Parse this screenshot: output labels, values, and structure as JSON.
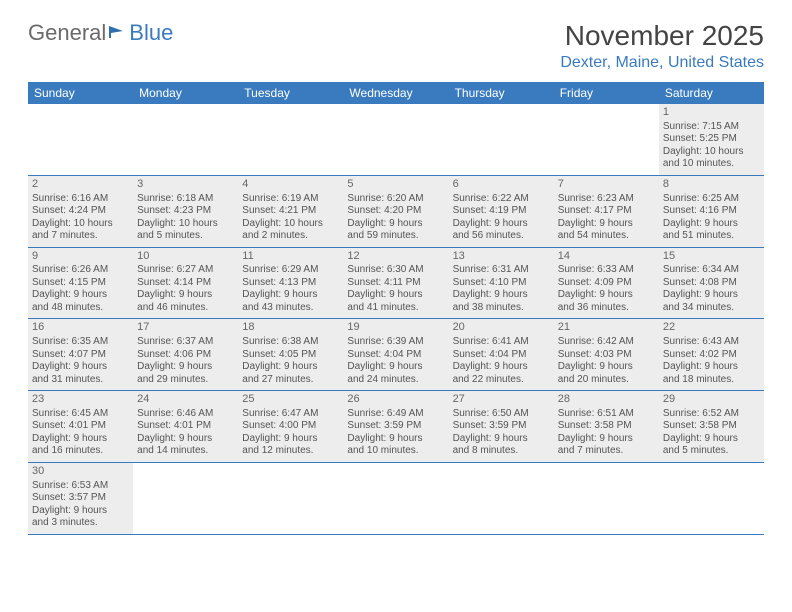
{
  "logo": {
    "part1": "General",
    "part2": "Blue",
    "flag_color": "#2f6fb0"
  },
  "title": {
    "month": "November 2025",
    "location": "Dexter, Maine, United States"
  },
  "colors": {
    "header_bg": "#3a7bbf",
    "header_text": "#ffffff",
    "row_bg": "#ededed",
    "border": "#3a7bbf",
    "location_color": "#3a7bbf",
    "text": "#555555"
  },
  "weekdays": [
    "Sunday",
    "Monday",
    "Tuesday",
    "Wednesday",
    "Thursday",
    "Friday",
    "Saturday"
  ],
  "weeks": [
    [
      null,
      null,
      null,
      null,
      null,
      null,
      {
        "d": "1",
        "sr": "Sunrise: 7:15 AM",
        "ss": "Sunset: 5:25 PM",
        "dl1": "Daylight: 10 hours",
        "dl2": "and 10 minutes."
      }
    ],
    [
      {
        "d": "2",
        "sr": "Sunrise: 6:16 AM",
        "ss": "Sunset: 4:24 PM",
        "dl1": "Daylight: 10 hours",
        "dl2": "and 7 minutes."
      },
      {
        "d": "3",
        "sr": "Sunrise: 6:18 AM",
        "ss": "Sunset: 4:23 PM",
        "dl1": "Daylight: 10 hours",
        "dl2": "and 5 minutes."
      },
      {
        "d": "4",
        "sr": "Sunrise: 6:19 AM",
        "ss": "Sunset: 4:21 PM",
        "dl1": "Daylight: 10 hours",
        "dl2": "and 2 minutes."
      },
      {
        "d": "5",
        "sr": "Sunrise: 6:20 AM",
        "ss": "Sunset: 4:20 PM",
        "dl1": "Daylight: 9 hours",
        "dl2": "and 59 minutes."
      },
      {
        "d": "6",
        "sr": "Sunrise: 6:22 AM",
        "ss": "Sunset: 4:19 PM",
        "dl1": "Daylight: 9 hours",
        "dl2": "and 56 minutes."
      },
      {
        "d": "7",
        "sr": "Sunrise: 6:23 AM",
        "ss": "Sunset: 4:17 PM",
        "dl1": "Daylight: 9 hours",
        "dl2": "and 54 minutes."
      },
      {
        "d": "8",
        "sr": "Sunrise: 6:25 AM",
        "ss": "Sunset: 4:16 PM",
        "dl1": "Daylight: 9 hours",
        "dl2": "and 51 minutes."
      }
    ],
    [
      {
        "d": "9",
        "sr": "Sunrise: 6:26 AM",
        "ss": "Sunset: 4:15 PM",
        "dl1": "Daylight: 9 hours",
        "dl2": "and 48 minutes."
      },
      {
        "d": "10",
        "sr": "Sunrise: 6:27 AM",
        "ss": "Sunset: 4:14 PM",
        "dl1": "Daylight: 9 hours",
        "dl2": "and 46 minutes."
      },
      {
        "d": "11",
        "sr": "Sunrise: 6:29 AM",
        "ss": "Sunset: 4:13 PM",
        "dl1": "Daylight: 9 hours",
        "dl2": "and 43 minutes."
      },
      {
        "d": "12",
        "sr": "Sunrise: 6:30 AM",
        "ss": "Sunset: 4:11 PM",
        "dl1": "Daylight: 9 hours",
        "dl2": "and 41 minutes."
      },
      {
        "d": "13",
        "sr": "Sunrise: 6:31 AM",
        "ss": "Sunset: 4:10 PM",
        "dl1": "Daylight: 9 hours",
        "dl2": "and 38 minutes."
      },
      {
        "d": "14",
        "sr": "Sunrise: 6:33 AM",
        "ss": "Sunset: 4:09 PM",
        "dl1": "Daylight: 9 hours",
        "dl2": "and 36 minutes."
      },
      {
        "d": "15",
        "sr": "Sunrise: 6:34 AM",
        "ss": "Sunset: 4:08 PM",
        "dl1": "Daylight: 9 hours",
        "dl2": "and 34 minutes."
      }
    ],
    [
      {
        "d": "16",
        "sr": "Sunrise: 6:35 AM",
        "ss": "Sunset: 4:07 PM",
        "dl1": "Daylight: 9 hours",
        "dl2": "and 31 minutes."
      },
      {
        "d": "17",
        "sr": "Sunrise: 6:37 AM",
        "ss": "Sunset: 4:06 PM",
        "dl1": "Daylight: 9 hours",
        "dl2": "and 29 minutes."
      },
      {
        "d": "18",
        "sr": "Sunrise: 6:38 AM",
        "ss": "Sunset: 4:05 PM",
        "dl1": "Daylight: 9 hours",
        "dl2": "and 27 minutes."
      },
      {
        "d": "19",
        "sr": "Sunrise: 6:39 AM",
        "ss": "Sunset: 4:04 PM",
        "dl1": "Daylight: 9 hours",
        "dl2": "and 24 minutes."
      },
      {
        "d": "20",
        "sr": "Sunrise: 6:41 AM",
        "ss": "Sunset: 4:04 PM",
        "dl1": "Daylight: 9 hours",
        "dl2": "and 22 minutes."
      },
      {
        "d": "21",
        "sr": "Sunrise: 6:42 AM",
        "ss": "Sunset: 4:03 PM",
        "dl1": "Daylight: 9 hours",
        "dl2": "and 20 minutes."
      },
      {
        "d": "22",
        "sr": "Sunrise: 6:43 AM",
        "ss": "Sunset: 4:02 PM",
        "dl1": "Daylight: 9 hours",
        "dl2": "and 18 minutes."
      }
    ],
    [
      {
        "d": "23",
        "sr": "Sunrise: 6:45 AM",
        "ss": "Sunset: 4:01 PM",
        "dl1": "Daylight: 9 hours",
        "dl2": "and 16 minutes."
      },
      {
        "d": "24",
        "sr": "Sunrise: 6:46 AM",
        "ss": "Sunset: 4:01 PM",
        "dl1": "Daylight: 9 hours",
        "dl2": "and 14 minutes."
      },
      {
        "d": "25",
        "sr": "Sunrise: 6:47 AM",
        "ss": "Sunset: 4:00 PM",
        "dl1": "Daylight: 9 hours",
        "dl2": "and 12 minutes."
      },
      {
        "d": "26",
        "sr": "Sunrise: 6:49 AM",
        "ss": "Sunset: 3:59 PM",
        "dl1": "Daylight: 9 hours",
        "dl2": "and 10 minutes."
      },
      {
        "d": "27",
        "sr": "Sunrise: 6:50 AM",
        "ss": "Sunset: 3:59 PM",
        "dl1": "Daylight: 9 hours",
        "dl2": "and 8 minutes."
      },
      {
        "d": "28",
        "sr": "Sunrise: 6:51 AM",
        "ss": "Sunset: 3:58 PM",
        "dl1": "Daylight: 9 hours",
        "dl2": "and 7 minutes."
      },
      {
        "d": "29",
        "sr": "Sunrise: 6:52 AM",
        "ss": "Sunset: 3:58 PM",
        "dl1": "Daylight: 9 hours",
        "dl2": "and 5 minutes."
      }
    ],
    [
      {
        "d": "30",
        "sr": "Sunrise: 6:53 AM",
        "ss": "Sunset: 3:57 PM",
        "dl1": "Daylight: 9 hours",
        "dl2": "and 3 minutes."
      },
      null,
      null,
      null,
      null,
      null,
      null
    ]
  ]
}
